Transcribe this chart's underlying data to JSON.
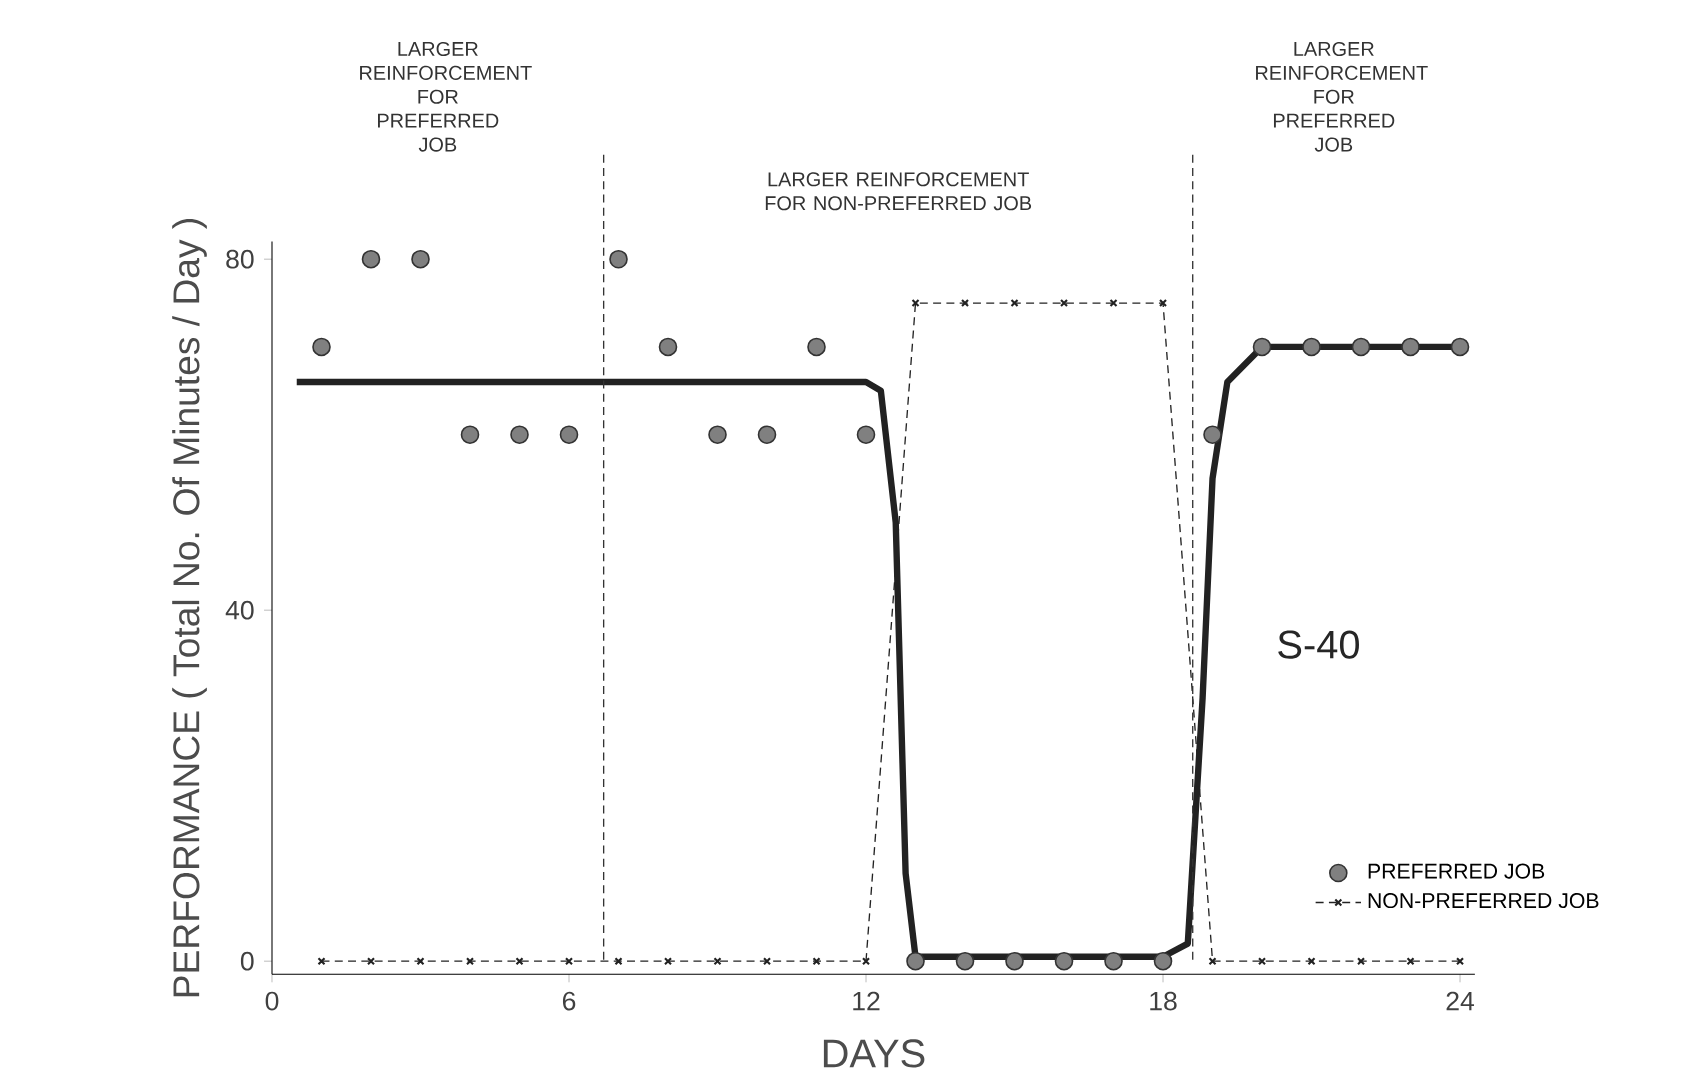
{
  "chart_data": {
    "type": "scatter",
    "xlabel": "DAYS",
    "ylabel": "PERFORMANCE ( Total No. Of Minutes / Day )",
    "xlim": [
      0,
      24.3
    ],
    "ylim": [
      -1.5,
      82
    ],
    "xticks": [
      0,
      6,
      12,
      18,
      24
    ],
    "yticks": [
      0,
      40,
      80
    ],
    "grid": false,
    "legend": "bottom right",
    "series": [
      {
        "name": "PREFERRED JOB",
        "marker": "circle",
        "color": "#808080",
        "x": [
          1,
          2,
          3,
          4,
          5,
          6,
          7,
          8,
          9,
          10,
          11,
          12,
          13,
          14,
          15,
          16,
          17,
          18,
          19,
          20,
          21,
          22,
          23,
          24
        ],
        "values": [
          70,
          80,
          80,
          60,
          60,
          60,
          80,
          70,
          60,
          60,
          70,
          60,
          0,
          0,
          0,
          0,
          0,
          0,
          60,
          70,
          70,
          70,
          70,
          70
        ]
      },
      {
        "name": "NON-PREFERRED JOB",
        "type": "line",
        "marker": "cross",
        "line_style": "dashed",
        "color": "#222222",
        "x": [
          1,
          2,
          3,
          4,
          5,
          6,
          7,
          8,
          9,
          10,
          11,
          12,
          13,
          14,
          15,
          16,
          17,
          18,
          19,
          20,
          21,
          22,
          23,
          24
        ],
        "values": [
          0,
          0,
          0,
          0,
          0,
          0,
          0,
          0,
          0,
          0,
          0,
          0,
          75,
          75,
          75,
          75,
          75,
          75,
          0,
          0,
          0,
          0,
          0,
          0
        ]
      },
      {
        "type": "line",
        "marker": "none",
        "color": "#222222",
        "x": [
          0.5,
          12,
          12.3,
          12.6,
          12.8,
          13,
          18,
          18.5,
          18.8,
          19,
          19.3,
          20,
          24
        ],
        "values": [
          66,
          66,
          65,
          50,
          10,
          0.5,
          0.5,
          2,
          30,
          55,
          66,
          70,
          70
        ]
      }
    ],
    "ref_lines": [
      {
        "axis": "x",
        "value": 6.7,
        "line_style": "dashed",
        "color": "#333333"
      },
      {
        "axis": "x",
        "value": 18.6,
        "line_style": "dashed",
        "color": "#333333"
      }
    ],
    "annotations": [
      "LARGER REINFORCEMENT FOR PREFERRED JOB",
      "LARGER REINFORCEMENT FOR NON-PREFERRED JOB",
      "LARGER REINFORCEMENT FOR PREFERRED JOB",
      "S-40"
    ]
  }
}
